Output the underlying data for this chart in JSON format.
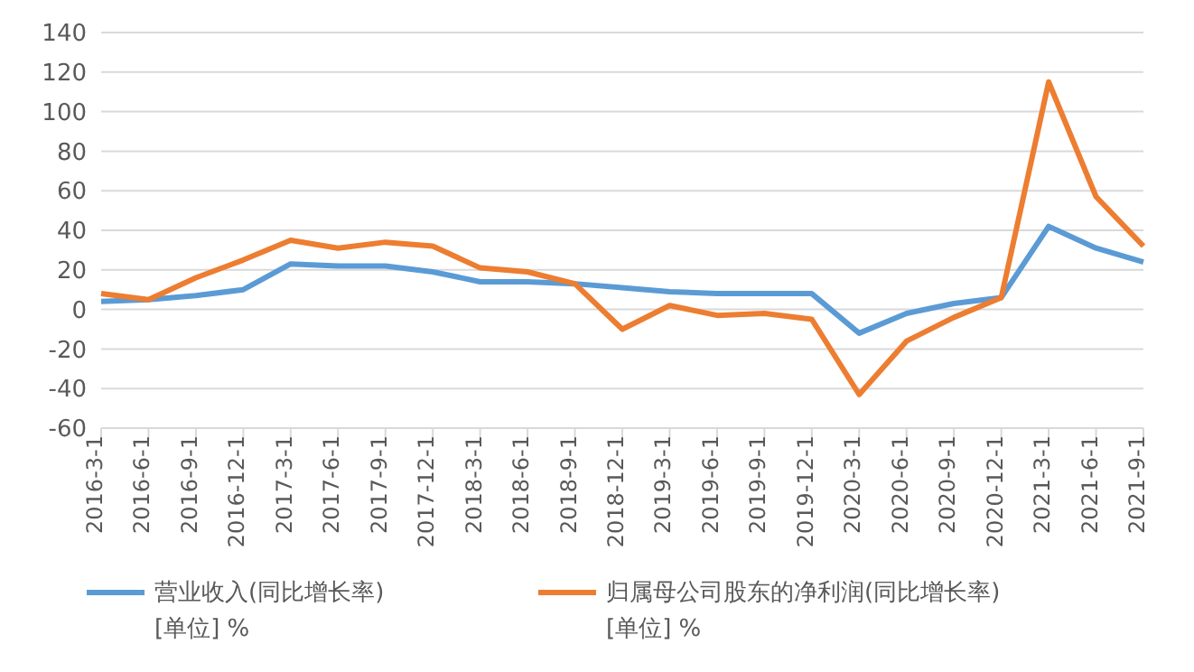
{
  "chart_data": {
    "type": "line",
    "categories": [
      "2016-3-1",
      "2016-6-1",
      "2016-9-1",
      "2016-12-1",
      "2017-3-1",
      "2017-6-1",
      "2017-9-1",
      "2017-12-1",
      "2018-3-1",
      "2018-6-1",
      "2018-9-1",
      "2018-12-1",
      "2019-3-1",
      "2019-6-1",
      "2019-9-1",
      "2019-12-1",
      "2020-3-1",
      "2020-6-1",
      "2020-9-1",
      "2020-12-1",
      "2021-3-1",
      "2021-6-1",
      "2021-9-1"
    ],
    "series": [
      {
        "name": "营业收入(同比增长率)\n[单位] %",
        "color": "#5b9bd5",
        "values": [
          4,
          5,
          7,
          10,
          23,
          22,
          22,
          19,
          14,
          14,
          13,
          11,
          9,
          8,
          8,
          8,
          -12,
          -2,
          3,
          6,
          42,
          31,
          24
        ]
      },
      {
        "name": "归属母公司股东的净利润(同比增长率)\n[单位] %",
        "color": "#ed7d31",
        "values": [
          8,
          5,
          16,
          25,
          35,
          31,
          34,
          32,
          21,
          19,
          13,
          -10,
          2,
          -3,
          -2,
          -5,
          -43,
          -16,
          -4,
          6,
          115,
          57,
          32
        ]
      }
    ],
    "ylim": [
      -60,
      140
    ],
    "yticks": [
      -60,
      -40,
      -20,
      0,
      20,
      40,
      60,
      80,
      100,
      120,
      140
    ],
    "grid": "y",
    "legend": "bottom",
    "marker": "none",
    "line_style": "solid"
  }
}
